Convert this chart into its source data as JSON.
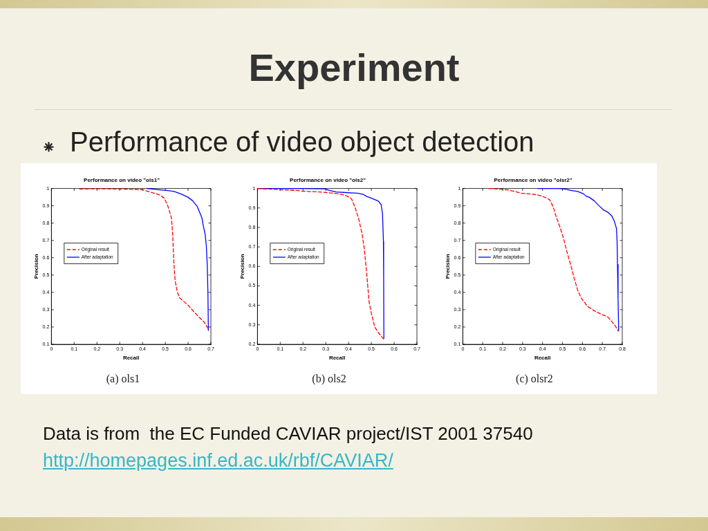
{
  "chart_data": [
    {
      "type": "line",
      "title": "Performance on video \"ols1\"",
      "xlabel": "Recall",
      "ylabel": "Precision",
      "xlim": [
        0,
        0.7
      ],
      "xticks": [
        0,
        0.1,
        0.2,
        0.3,
        0.4,
        0.5,
        0.6,
        0.7
      ],
      "ylim": [
        0.1,
        1
      ],
      "yticks": [
        0.1,
        0.2,
        0.3,
        0.4,
        0.5,
        0.6,
        0.7,
        0.8,
        0.9,
        1
      ],
      "grid": false,
      "legend": "left",
      "marker": "none",
      "series": [
        {
          "name": "Original result",
          "color": "#ff0000",
          "line_style": "dashed",
          "x": [
            0.124,
            0.2,
            0.3,
            0.4,
            0.435,
            0.476,
            0.496,
            0.512,
            0.527,
            0.532,
            0.538,
            0.543,
            0.553,
            0.563,
            0.599,
            0.64,
            0.671,
            0.69
          ],
          "values": [
            0.997,
            0.998,
            0.997,
            0.993,
            0.979,
            0.963,
            0.943,
            0.896,
            0.829,
            0.742,
            0.56,
            0.468,
            0.4,
            0.368,
            0.327,
            0.267,
            0.227,
            0.187
          ]
        },
        {
          "name": "After adaptation",
          "color": "#0000ff",
          "line_style": "solid",
          "x": [
            0.419,
            0.476,
            0.517,
            0.538,
            0.568,
            0.6,
            0.62,
            0.64,
            0.651,
            0.661,
            0.666,
            0.675,
            0.68,
            0.684,
            0.687,
            0.689
          ],
          "values": [
            1,
            0.992,
            0.987,
            0.983,
            0.969,
            0.949,
            0.929,
            0.896,
            0.862,
            0.829,
            0.789,
            0.735,
            0.668,
            0.56,
            0.4,
            0.18
          ]
        }
      ],
      "annotations": [
        "Experiment",
        "Performance of video object detection",
        "(a) ols1",
        "Data is from  the EC Funded CAVIAR project/IST 2001 37540",
        "http://homepages.inf.ed.ac.uk/rbf/CAVIAR/"
      ]
    },
    {
      "type": "line",
      "title": "Performance on video \"ols2\"",
      "xlabel": "Recall",
      "ylabel": "Precision",
      "xlim": [
        0,
        0.7
      ],
      "xticks": [
        0,
        0.1,
        0.2,
        0.3,
        0.4,
        0.5,
        0.6,
        0.7
      ],
      "ylim": [
        0.2,
        1
      ],
      "yticks": [
        0.2,
        0.3,
        0.4,
        0.5,
        0.6,
        0.7,
        0.8,
        0.9,
        1
      ],
      "grid": false,
      "legend": "left",
      "marker": "none",
      "series": [
        {
          "name": "Original result",
          "color": "#ff0000",
          "line_style": "dashed",
          "x": [
            0,
            0.1,
            0.171,
            0.2,
            0.274,
            0.305,
            0.346,
            0.377,
            0.397,
            0.413,
            0.428,
            0.444,
            0.459,
            0.469,
            0.479,
            0.49,
            0.5,
            0.515,
            0.531,
            0.553
          ],
          "values": [
            1,
            0.994,
            0.99,
            0.986,
            0.982,
            0.979,
            0.974,
            0.968,
            0.959,
            0.947,
            0.905,
            0.846,
            0.769,
            0.692,
            0.573,
            0.419,
            0.36,
            0.289,
            0.26,
            0.228
          ]
        },
        {
          "name": "After adaptation",
          "color": "#0000ff",
          "line_style": "solid",
          "x": [
            0,
            0.171,
            0.295,
            0.315,
            0.346,
            0.387,
            0.438,
            0.464,
            0.479,
            0.5,
            0.531,
            0.543,
            0.549,
            0.553,
            0.554,
            0.555
          ],
          "values": [
            1,
            1,
            0.998,
            0.99,
            0.982,
            0.979,
            0.976,
            0.97,
            0.959,
            0.95,
            0.935,
            0.917,
            0.87,
            0.728,
            0.55,
            0.23
          ]
        }
      ],
      "annotations": [
        "(b) ols2"
      ]
    },
    {
      "type": "line",
      "title": "Performance on video \"olsr2\"",
      "xlabel": "Recall",
      "ylabel": "Precision",
      "xlim": [
        0,
        0.8
      ],
      "xticks": [
        0,
        0.1,
        0.2,
        0.3,
        0.4,
        0.5,
        0.6,
        0.7,
        0.8
      ],
      "ylim": [
        0.1,
        1
      ],
      "yticks": [
        0.1,
        0.2,
        0.3,
        0.4,
        0.5,
        0.6,
        0.7,
        0.8,
        0.9,
        1
      ],
      "grid": false,
      "legend": "left",
      "marker": "none",
      "series": [
        {
          "name": "Original result",
          "color": "#ff0000",
          "line_style": "dashed",
          "x": [
            0.129,
            0.188,
            0.224,
            0.259,
            0.294,
            0.341,
            0.376,
            0.412,
            0.435,
            0.453,
            0.471,
            0.488,
            0.506,
            0.524,
            0.541,
            0.559,
            0.576,
            0.594,
            0.624,
            0.659,
            0.694,
            0.724,
            0.741,
            0.765,
            0.78
          ],
          "values": [
            1,
            0.996,
            0.992,
            0.983,
            0.973,
            0.968,
            0.963,
            0.949,
            0.936,
            0.896,
            0.829,
            0.775,
            0.709,
            0.628,
            0.561,
            0.481,
            0.414,
            0.368,
            0.321,
            0.294,
            0.274,
            0.261,
            0.241,
            0.207,
            0.176
          ]
        },
        {
          "name": "After adaptation",
          "color": "#0000ff",
          "line_style": "solid",
          "x": [
            0.376,
            0.482,
            0.518,
            0.541,
            0.576,
            0.606,
            0.618,
            0.635,
            0.659,
            0.682,
            0.706,
            0.729,
            0.747,
            0.759,
            0.771,
            0.774,
            0.776,
            0.779,
            0.782
          ],
          "values": [
            1,
            1,
            0.996,
            0.989,
            0.983,
            0.969,
            0.956,
            0.949,
            0.929,
            0.902,
            0.876,
            0.862,
            0.842,
            0.815,
            0.769,
            0.695,
            0.561,
            0.361,
            0.18
          ]
        }
      ],
      "annotations": [
        "(c) olsr2"
      ]
    }
  ]
}
